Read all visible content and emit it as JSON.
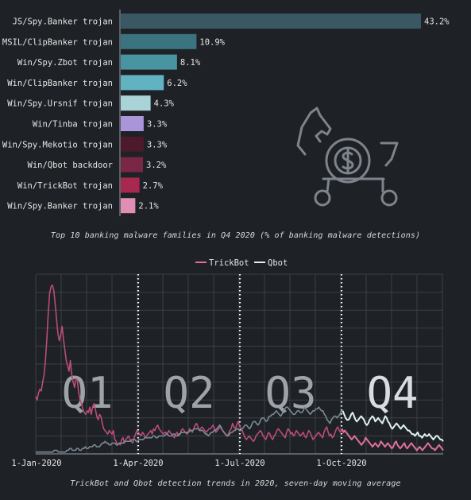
{
  "chart_data": [
    {
      "type": "bar",
      "orientation": "horizontal",
      "categories": [
        "JS/Spy.Banker trojan",
        "MSIL/ClipBanker trojan",
        "Win/Spy.Zbot trojan",
        "Win/ClipBanker trojan",
        "Win/Spy.Ursnif trojan",
        "Win/Tinba trojan",
        "Win/Spy.Mekotio trojan",
        "Win/Qbot backdoor",
        "Win/TrickBot trojan",
        "Win/Spy.Banker trojan"
      ],
      "values": [
        43.2,
        10.9,
        8.1,
        6.2,
        4.3,
        3.3,
        3.3,
        3.2,
        2.7,
        2.1
      ],
      "value_labels": [
        "43.2%",
        "10.9%",
        "8.1%",
        "6.2%",
        "4.3%",
        "3.3%",
        "3.3%",
        "3.2%",
        "2.7%",
        "2.1%"
      ],
      "colors": [
        "#3a5863",
        "#3b7380",
        "#4895a1",
        "#62b3c1",
        "#a9d3d7",
        "#a995d8",
        "#4d1a2c",
        "#7a2645",
        "#a8294f",
        "#df8fb3"
      ],
      "title": "Top 10 banking malware families in Q4 2020 (% of banking malware detections)",
      "xlim": [
        0,
        43.2
      ],
      "icon": "trojan-horse-dollar-icon"
    },
    {
      "type": "line",
      "title": "TrickBot and Qbot detection trends in 2020, seven-day moving average",
      "x_ticks": [
        "1-Jan-2020",
        "1-Apr-2020",
        "1-Jul-2020",
        "1-Oct-2020"
      ],
      "quarter_labels": [
        "Q1",
        "Q2",
        "Q3",
        "Q4"
      ],
      "grid": true,
      "legend_position": "top-center",
      "y_range": [
        0,
        100
      ],
      "series": [
        {
          "name": "TrickBot",
          "color": "#b94d7a",
          "q4_color": "#e0709d",
          "values": [
            32,
            30,
            34,
            36,
            35,
            40,
            44,
            52,
            64,
            78,
            89,
            93,
            94,
            91,
            84,
            75,
            67,
            63,
            66,
            71,
            64,
            58,
            52,
            49,
            46,
            52,
            44,
            40,
            37,
            42,
            41,
            34,
            30,
            28,
            25,
            23,
            22,
            24,
            23,
            26,
            22,
            26,
            28,
            25,
            21,
            19,
            22,
            21,
            17,
            14,
            13,
            12,
            11,
            13,
            12,
            11,
            13,
            8,
            7,
            5,
            6,
            5,
            8,
            9,
            6,
            8,
            9,
            10,
            8,
            7,
            6,
            9,
            11,
            13,
            12,
            11,
            10,
            12,
            11,
            9,
            10,
            11,
            12,
            13,
            11,
            14,
            13,
            15,
            16,
            14,
            13,
            12,
            11,
            12,
            12,
            11,
            13,
            12,
            11,
            10,
            9,
            11,
            12,
            10,
            11,
            13,
            14,
            13,
            12,
            11,
            12,
            14,
            13,
            12,
            14,
            16,
            17,
            15,
            13,
            14,
            15,
            14,
            13,
            12,
            13,
            14,
            14,
            15,
            16,
            14,
            12,
            13,
            14,
            15,
            14,
            13,
            12,
            11,
            10,
            11,
            13,
            14,
            17,
            15,
            14,
            16,
            18,
            16,
            14,
            13,
            11,
            9,
            8,
            9,
            10,
            9,
            8,
            7,
            8,
            10,
            11,
            12,
            13,
            12,
            10,
            9,
            8,
            10,
            12,
            11,
            9,
            8,
            10,
            11,
            13,
            14,
            13,
            12,
            11,
            10,
            9,
            12,
            14,
            13,
            11,
            12,
            10,
            11,
            13,
            12,
            11,
            10,
            11,
            12,
            10,
            9,
            11,
            13,
            12,
            10,
            8,
            9,
            10,
            11,
            12,
            11,
            10,
            9,
            12,
            14,
            15,
            12,
            10,
            11,
            9,
            10,
            12,
            14,
            15,
            13,
            12,
            14,
            12,
            13,
            12,
            11,
            10,
            9,
            8,
            9,
            10,
            9,
            8,
            7,
            6,
            5,
            6,
            7,
            9,
            8,
            7,
            6,
            5,
            4,
            5,
            6,
            5,
            4,
            5,
            7,
            6,
            5,
            4,
            5,
            6,
            5,
            4,
            3,
            4,
            6,
            7,
            5,
            4,
            3,
            4,
            5,
            6,
            4,
            3,
            4,
            5,
            6,
            5,
            4,
            3,
            2,
            3,
            4,
            3,
            2,
            3,
            4,
            5,
            6,
            5,
            4,
            3,
            3,
            2,
            3,
            4,
            5,
            4,
            3,
            2
          ]
        },
        {
          "name": "Qbot",
          "color": "#7a8b96",
          "q4_color": "#ddf1f5",
          "values": [
            1,
            1,
            1,
            1,
            1,
            1,
            1,
            1,
            1,
            1,
            1,
            1,
            1,
            2,
            2,
            2,
            1,
            1,
            1,
            1,
            1,
            1,
            2,
            2,
            3,
            3,
            2,
            2,
            2,
            3,
            3,
            2,
            2,
            3,
            3,
            4,
            3,
            3,
            4,
            4,
            4,
            5,
            5,
            4,
            4,
            4,
            5,
            6,
            6,
            7,
            6,
            6,
            5,
            5,
            6,
            6,
            6,
            5,
            5,
            6,
            6,
            6,
            6,
            7,
            7,
            7,
            7,
            7,
            8,
            8,
            8,
            7,
            7,
            8,
            8,
            8,
            8,
            9,
            9,
            9,
            9,
            9,
            9,
            10,
            10,
            9,
            9,
            10,
            10,
            10,
            10,
            10,
            11,
            11,
            10,
            10,
            10,
            11,
            11,
            10,
            10,
            11,
            11,
            12,
            12,
            12,
            12,
            12,
            12,
            13,
            13,
            13,
            14,
            14,
            14,
            14,
            13,
            13,
            13,
            12,
            11,
            11,
            10,
            11,
            12,
            12,
            13,
            13,
            14,
            15,
            16,
            15,
            13,
            12,
            11,
            10,
            10,
            11,
            12,
            12,
            13,
            13,
            14,
            14,
            13,
            13,
            14,
            15,
            16,
            16,
            15,
            14,
            15,
            17,
            18,
            18,
            17,
            16,
            17,
            19,
            20,
            20,
            19,
            18,
            19,
            21,
            21,
            22,
            22,
            23,
            24,
            23,
            22,
            21,
            22,
            24,
            25,
            26,
            26,
            25,
            24,
            23,
            22,
            22,
            23,
            24,
            24,
            23,
            23,
            24,
            26,
            25,
            24,
            23,
            22,
            23,
            24,
            24,
            25,
            25,
            26,
            25,
            24,
            24,
            22,
            21,
            19,
            18,
            17,
            19,
            20,
            21,
            21,
            20,
            21,
            22,
            24,
            24,
            22,
            20,
            19,
            19,
            20,
            22,
            23,
            21,
            19,
            18,
            19,
            20,
            21,
            20,
            19,
            17,
            16,
            17,
            19,
            20,
            21,
            20,
            18,
            19,
            20,
            19,
            18,
            17,
            19,
            21,
            20,
            18,
            17,
            15,
            14,
            15,
            16,
            17,
            16,
            15,
            14,
            15,
            16,
            15,
            14,
            13,
            13,
            12,
            11,
            11,
            10,
            11,
            12,
            10,
            10,
            9,
            10,
            11,
            10,
            10,
            11,
            10,
            9,
            8,
            9,
            10,
            10,
            9,
            8,
            8,
            7
          ]
        }
      ]
    }
  ],
  "captions": {
    "top": "Top 10 banking malware families in Q4 2020 (% of banking malware detections)",
    "bottom": "TrickBot and Qbot detection trends in 2020, seven-day moving average"
  },
  "colors": {
    "background": "#1e2125",
    "grid": "#3c3f45",
    "text": "#e6e6e6",
    "divider": "#ffffff"
  }
}
